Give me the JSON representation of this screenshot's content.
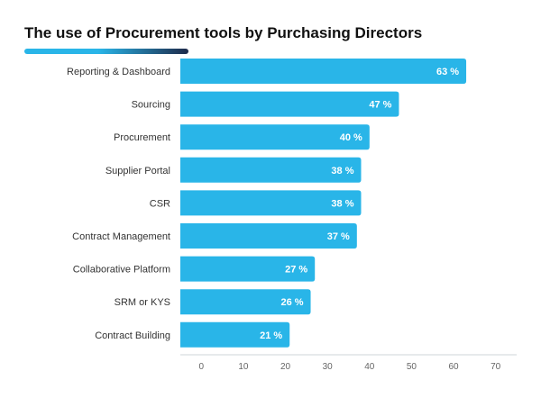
{
  "title": "The use of Procurement tools by Purchasing Directors",
  "colors": {
    "bar": "#29b5e8",
    "bar_label": "#ffffff",
    "title_accent": "#29b5e8",
    "title_accent_dark": "#1e2a4a"
  },
  "chart_data": {
    "type": "bar",
    "orientation": "horizontal",
    "title": "The use of Procurement tools by Purchasing Directors",
    "xlabel": "",
    "ylabel": "",
    "categories": [
      "Reporting & Dashboard",
      "Sourcing",
      "Procurement",
      "Supplier Portal",
      "CSR",
      "Contract Management",
      "Collaborative Platform",
      "SRM or KYS",
      "Contract Building"
    ],
    "values": [
      63,
      47,
      40,
      38,
      38,
      37,
      27,
      26,
      21
    ],
    "value_labels": [
      "63 %",
      "47 %",
      "40 %",
      "38 %",
      "38 %",
      "37 %",
      "27 %",
      "26 %",
      "21 %"
    ],
    "xlim": [
      -5,
      75
    ],
    "xticks": [
      0,
      10,
      20,
      30,
      40,
      50,
      60,
      70
    ],
    "grid": false,
    "legend": "none"
  }
}
